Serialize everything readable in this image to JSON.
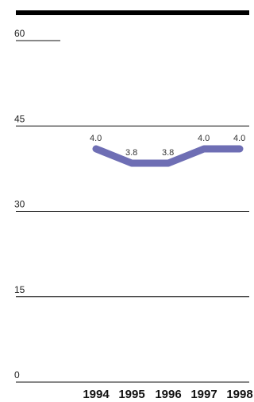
{
  "chart_data": {
    "type": "line",
    "title": "",
    "xlabel": "",
    "ylabel": "",
    "categories": [
      "1994",
      "1995",
      "1996",
      "1997",
      "1998"
    ],
    "series": [
      {
        "values": [
          4.0,
          3.8,
          3.8,
          4.0,
          4.0
        ],
        "labels": [
          "4.0",
          "3.8",
          "3.8",
          "4.0",
          "4.0"
        ]
      }
    ],
    "ylim": [
      0,
      60
    ],
    "yticks": [
      0,
      15,
      30,
      45,
      60
    ],
    "ytick_labels": [
      "0",
      "15",
      "30",
      "45",
      "60"
    ],
    "grid": true,
    "legend": "none"
  },
  "colors": {
    "line": "#6e6eb4",
    "grid": "#111111",
    "top_rule": "#000000"
  }
}
